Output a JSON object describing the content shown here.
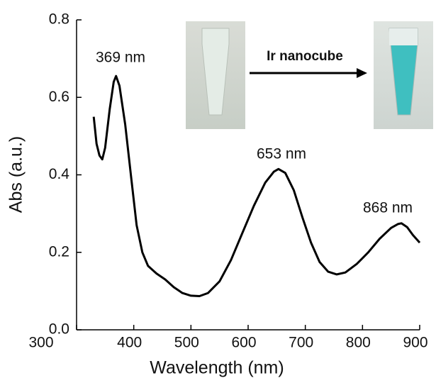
{
  "chart_data": {
    "type": "line",
    "xlabel": "Wavelength (nm)",
    "ylabel": "Abs (a.u.)",
    "x": [
      330,
      335,
      340,
      345,
      350,
      358,
      365,
      369,
      375,
      385,
      395,
      405,
      415,
      425,
      440,
      455,
      470,
      485,
      500,
      515,
      530,
      550,
      570,
      590,
      610,
      630,
      645,
      653,
      665,
      680,
      695,
      710,
      725,
      740,
      755,
      770,
      790,
      810,
      830,
      850,
      862,
      868,
      878,
      888,
      900
    ],
    "series": [
      {
        "color": "#000000",
        "values": [
          0.55,
          0.48,
          0.45,
          0.44,
          0.47,
          0.57,
          0.64,
          0.655,
          0.63,
          0.53,
          0.4,
          0.27,
          0.2,
          0.165,
          0.145,
          0.13,
          0.11,
          0.095,
          0.088,
          0.087,
          0.095,
          0.125,
          0.18,
          0.25,
          0.32,
          0.38,
          0.408,
          0.415,
          0.405,
          0.36,
          0.29,
          0.225,
          0.175,
          0.15,
          0.143,
          0.148,
          0.17,
          0.2,
          0.235,
          0.263,
          0.273,
          0.275,
          0.265,
          0.245,
          0.225
        ]
      }
    ],
    "xlim": [
      300,
      900
    ],
    "ylim": [
      0,
      0.8
    ],
    "xticks": [
      300,
      400,
      500,
      600,
      700,
      800,
      900
    ],
    "yticks": [
      {
        "value": 0,
        "label": "0.0"
      },
      0.2,
      0.4,
      0.6,
      0.8
    ],
    "annotations": [
      "369 nm",
      "653 nm",
      "868 nm"
    ],
    "inset_label": "Ir nanocube"
  }
}
